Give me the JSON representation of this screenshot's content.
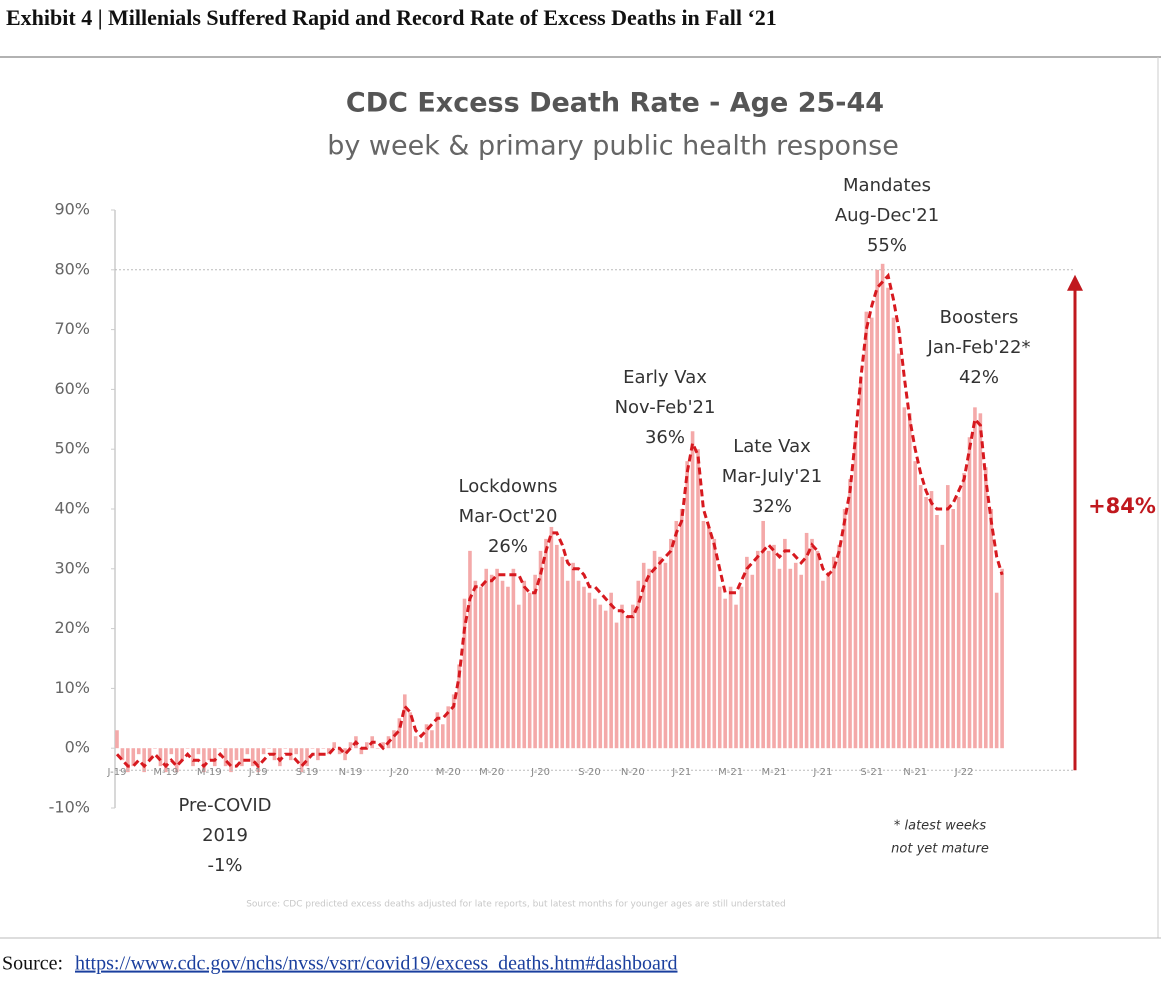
{
  "header": {
    "title": "Exhibit 4 | Millenials Suffered Rapid and Record Rate of Excess Deaths in Fall ‘21"
  },
  "chart_data": {
    "type": "bar",
    "title": "CDC Excess Death Rate - Age 25-44",
    "subtitle": "by week & primary public health response",
    "ylim": [
      -10,
      90
    ],
    "yticks": [
      {
        "value": -10,
        "label": "-10%"
      },
      {
        "value": 0,
        "label": "0%"
      },
      {
        "value": 10,
        "label": "10%"
      },
      {
        "value": 20,
        "label": "20%"
      },
      {
        "value": 30,
        "label": "30%"
      },
      {
        "value": 40,
        "label": "40%"
      },
      {
        "value": 50,
        "label": "50%"
      },
      {
        "value": 60,
        "label": "60%"
      },
      {
        "value": 70,
        "label": "70%"
      },
      {
        "value": 80,
        "label": "80%"
      },
      {
        "value": 90,
        "label": "90%"
      }
    ],
    "reference_line": 80,
    "categories": [
      "J-19",
      null,
      null,
      null,
      null,
      null,
      null,
      null,
      null,
      "M-19",
      null,
      null,
      null,
      null,
      null,
      null,
      null,
      "M-19",
      null,
      null,
      null,
      null,
      null,
      null,
      null,
      null,
      "J-19",
      null,
      null,
      null,
      null,
      null,
      null,
      null,
      null,
      "S-19",
      null,
      null,
      null,
      null,
      null,
      null,
      null,
      "N-19",
      null,
      null,
      null,
      null,
      null,
      null,
      null,
      null,
      "J-20",
      null,
      null,
      null,
      null,
      null,
      null,
      null,
      null,
      "M-20",
      null,
      null,
      null,
      null,
      null,
      null,
      null,
      "M-20",
      null,
      null,
      null,
      null,
      null,
      null,
      null,
      null,
      "J-20",
      null,
      null,
      null,
      null,
      null,
      null,
      null,
      null,
      "S-20",
      null,
      null,
      null,
      null,
      null,
      null,
      null,
      "N-20",
      null,
      null,
      null,
      null,
      null,
      null,
      null,
      null,
      "J-21",
      null,
      null,
      null,
      null,
      null,
      null,
      null,
      null,
      "M-21",
      null,
      null,
      null,
      null,
      null,
      null,
      null,
      "M-21",
      null,
      null,
      null,
      null,
      null,
      null,
      null,
      null,
      "J-21",
      null,
      null,
      null,
      null,
      null,
      null,
      null,
      null,
      "S-21",
      null,
      null,
      null,
      null,
      null,
      null,
      null,
      "N-21",
      null,
      null,
      null,
      null,
      null,
      null,
      null,
      null,
      "J-22",
      null,
      null,
      null,
      null,
      null,
      null,
      null
    ],
    "series": [
      {
        "color": "#f4a9a9",
        "values": [
          3,
          -2,
          -4,
          -3,
          -1,
          -4,
          -2,
          0,
          -3,
          -4,
          -1,
          -4,
          -2,
          0,
          -3,
          -1,
          -4,
          -2,
          -3,
          0,
          -3,
          -4,
          -2,
          -3,
          -1,
          -3,
          -4,
          -1,
          0,
          -2,
          -3,
          0,
          -2,
          -1,
          -4,
          -3,
          0,
          -2,
          0,
          -1,
          1,
          -1,
          -2,
          1,
          2,
          -1,
          1,
          2,
          0,
          1,
          2,
          3,
          5,
          9,
          6,
          2,
          1,
          4,
          3,
          6,
          4,
          7,
          9,
          14,
          25,
          33,
          28,
          27,
          30,
          29,
          30,
          28,
          27,
          30,
          24,
          28,
          26,
          29,
          33,
          35,
          37,
          34,
          32,
          28,
          31,
          28,
          27,
          26,
          25,
          24,
          23,
          26,
          21,
          24,
          22,
          24,
          28,
          31,
          30,
          33,
          32,
          31,
          35,
          38,
          40,
          48,
          53,
          50,
          38,
          37,
          35,
          27,
          25,
          27,
          24,
          27,
          32,
          29,
          33,
          38,
          33,
          34,
          30,
          35,
          30,
          31,
          29,
          36,
          35,
          33,
          28,
          29,
          32,
          34,
          40,
          45,
          53,
          62,
          73,
          72,
          80,
          81,
          77,
          72,
          66,
          57,
          56,
          48,
          44,
          42,
          43,
          39,
          34,
          44,
          40,
          42,
          46,
          52,
          57,
          56,
          47,
          40,
          26,
          30
        ]
      },
      {
        "color": "#d7191f",
        "type": "line",
        "values": [
          -1,
          -2,
          -3,
          -3,
          -2,
          -3,
          -2,
          -1,
          -2,
          -3,
          -2,
          -3,
          -2,
          -1,
          -2,
          -2,
          -3,
          -2,
          -2,
          -1,
          -2,
          -3,
          -3,
          -2,
          -2,
          -2,
          -3,
          -2,
          -1,
          -1,
          -2,
          -1,
          -1,
          -2,
          -3,
          -2,
          -1,
          -1,
          -1,
          -1,
          0,
          0,
          -1,
          0,
          1,
          0,
          0,
          1,
          1,
          0,
          1,
          2,
          3,
          7,
          6,
          3,
          2,
          3,
          4,
          5,
          5,
          6,
          7,
          12,
          20,
          25,
          27,
          27,
          28,
          28,
          29,
          29,
          29,
          29,
          29,
          27,
          26,
          26,
          29,
          33,
          36,
          36,
          34,
          31,
          30,
          30,
          29,
          27,
          27,
          26,
          25,
          24,
          23,
          23,
          22,
          22,
          24,
          27,
          29,
          30,
          31,
          32,
          33,
          36,
          38,
          46,
          51,
          49,
          40,
          37,
          34,
          30,
          26,
          26,
          26,
          28,
          30,
          31,
          32,
          33,
          34,
          33,
          32,
          33,
          33,
          32,
          31,
          32,
          34,
          33,
          30,
          29,
          30,
          33,
          38,
          43,
          52,
          62,
          70,
          74,
          77,
          78,
          79,
          75,
          70,
          62,
          55,
          50,
          46,
          43,
          41,
          40,
          40,
          40,
          41,
          43,
          45,
          50,
          55,
          54,
          45,
          38,
          32,
          29
        ]
      }
    ],
    "annotations": [
      {
        "lines": [
          "Pre-COVID",
          "2019",
          "-1%"
        ]
      },
      {
        "lines": [
          "Lockdowns",
          "Mar-Oct'20",
          "26%"
        ]
      },
      {
        "lines": [
          "Early Vax",
          "Nov-Feb'21",
          "36%"
        ]
      },
      {
        "lines": [
          "Late Vax",
          "Mar-July'21",
          "32%"
        ]
      },
      {
        "lines": [
          "Mandates",
          "Aug-Dec'21",
          "55%"
        ]
      },
      {
        "lines": [
          "Boosters",
          "Jan-Feb'22*",
          "42%"
        ]
      }
    ],
    "change_label": "+84%",
    "footnote": [
      "* latest weeks",
      "not yet mature"
    ],
    "source_note": "Source: CDC predicted excess deaths adjusted for late reports, but latest months for younger ages are still understated"
  },
  "footer": {
    "label": "Source:",
    "link": "https://www.cdc.gov/nchs/nvss/vsrr/covid19/excess_deaths.htm#dashboard"
  }
}
